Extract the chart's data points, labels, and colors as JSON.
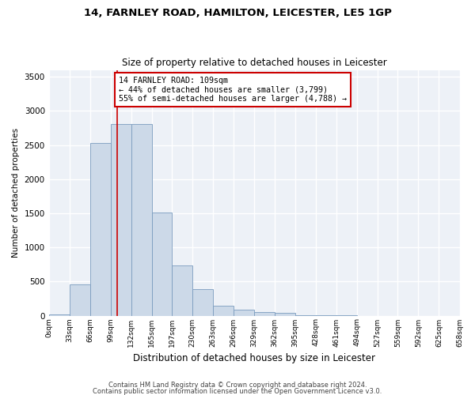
{
  "title": "14, FARNLEY ROAD, HAMILTON, LEICESTER, LE5 1GP",
  "subtitle": "Size of property relative to detached houses in Leicester",
  "xlabel": "Distribution of detached houses by size in Leicester",
  "ylabel": "Number of detached properties",
  "bar_color": "#ccd9e8",
  "bar_edge_color": "#7a9cbf",
  "annotation_line_color": "#cc0000",
  "annotation_box_color": "#cc0000",
  "annotation_text": "14 FARNLEY ROAD: 109sqm\n← 44% of detached houses are smaller (3,799)\n55% of semi-detached houses are larger (4,788) →",
  "property_sqm": 109,
  "bin_edges": [
    0,
    33,
    66,
    99,
    132,
    165,
    197,
    230,
    263,
    296,
    329,
    362,
    395,
    428,
    461,
    494,
    527,
    559,
    592,
    625,
    658
  ],
  "bar_heights": [
    20,
    460,
    2530,
    2810,
    2810,
    1510,
    730,
    390,
    140,
    85,
    50,
    40,
    10,
    3,
    1,
    0,
    0,
    0,
    0,
    0
  ],
  "ylim": [
    0,
    3600
  ],
  "yticks": [
    0,
    500,
    1000,
    1500,
    2000,
    2500,
    3000,
    3500
  ],
  "background_color": "#edf1f7",
  "grid_color": "#ffffff",
  "footer1": "Contains HM Land Registry data © Crown copyright and database right 2024.",
  "footer2": "Contains public sector information licensed under the Open Government Licence v3.0."
}
